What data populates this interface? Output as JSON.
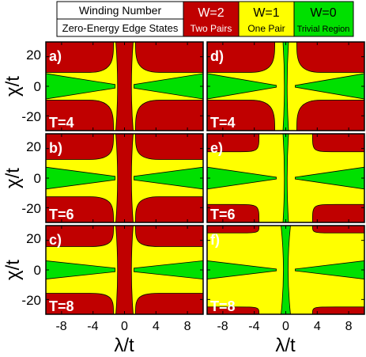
{
  "chart_data": {
    "type": "heatmap",
    "legend": {
      "row1_label": "Winding Number",
      "row2_label": "Zero-Energy Edge States",
      "entries": [
        {
          "top": "W=2",
          "bottom": "Two Pairs",
          "color": "#c00000"
        },
        {
          "top": "W=1",
          "bottom": "One Pair",
          "color": "#ffff00"
        },
        {
          "top": "W=0",
          "bottom": "Trivial Region",
          "color": "#00e000"
        }
      ]
    },
    "xlabel": "λ/t",
    "ylabel": "χ/t",
    "xlim": [
      -10,
      10
    ],
    "ylim": [
      -30,
      30
    ],
    "xticks": [
      "-8",
      "-4",
      "0",
      "4",
      "8"
    ],
    "xtick_values": [
      -8,
      -4,
      0,
      4,
      8
    ],
    "yticks": [
      "20",
      "0",
      "-20"
    ],
    "ytick_values": [
      20,
      0,
      -20
    ],
    "colors": {
      "w2": "#c00000",
      "w1": "#ffff00",
      "w0": "#00e000"
    },
    "panels": [
      {
        "label": "a)",
        "T_label": "T=4",
        "T": 4,
        "column": 1
      },
      {
        "label": "b)",
        "T_label": "T=6",
        "T": 6,
        "column": 1
      },
      {
        "label": "c)",
        "T_label": "T=8",
        "T": 8,
        "column": 1
      },
      {
        "label": "d)",
        "T_label": "T=4",
        "T": 4,
        "column": 2
      },
      {
        "label": "e)",
        "T_label": "T=6",
        "T": 6,
        "column": 2
      },
      {
        "label": "f)",
        "T_label": "T=8",
        "T": 8,
        "column": 2
      }
    ]
  }
}
